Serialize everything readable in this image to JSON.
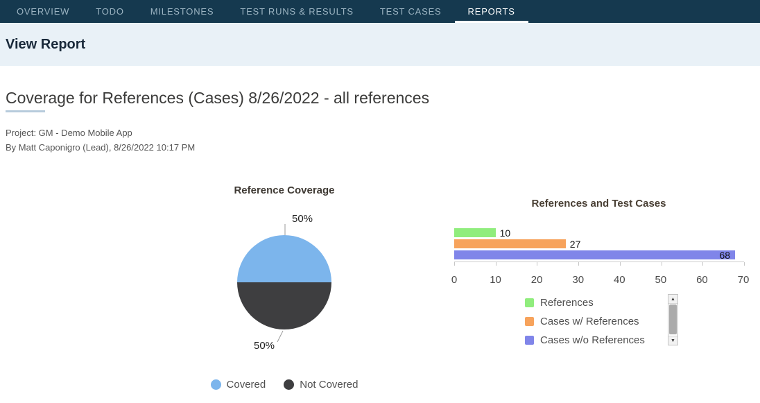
{
  "nav": {
    "items": [
      {
        "label": "OVERVIEW",
        "active": false
      },
      {
        "label": "TODO",
        "active": false
      },
      {
        "label": "MILESTONES",
        "active": false
      },
      {
        "label": "TEST RUNS & RESULTS",
        "active": false
      },
      {
        "label": "TEST CASES",
        "active": false
      },
      {
        "label": "REPORTS",
        "active": true
      }
    ]
  },
  "header": {
    "title": "View Report"
  },
  "report": {
    "title": "Coverage for References (Cases) 8/26/2022 - all references",
    "project_line": "Project: GM - Demo Mobile App",
    "byline": "By Matt Caponigro (Lead), 8/26/2022 10:17 PM"
  },
  "scrollbar": {
    "up_icon": "▲",
    "down_icon": "▼"
  },
  "chart_data": [
    {
      "type": "pie",
      "title": "Reference Coverage",
      "slices": [
        {
          "label": "Covered",
          "value": 50,
          "data_label": "50%",
          "color": "#7cb5ec"
        },
        {
          "label": "Not Covered",
          "value": 50,
          "data_label": "50%",
          "color": "#3e3e40"
        }
      ],
      "legend_position": "bottom"
    },
    {
      "type": "bar",
      "title": "References and Test Cases",
      "series": [
        {
          "name": "References",
          "value": 10,
          "color": "#90ed7d"
        },
        {
          "name": "Cases w/ References",
          "value": 27,
          "color": "#f7a35c"
        },
        {
          "name": "Cases w/o References",
          "value": 68,
          "color": "#8085e9"
        }
      ],
      "xlim": [
        0,
        70
      ],
      "x_ticks": [
        0,
        10,
        20,
        30,
        40,
        50,
        60,
        70
      ],
      "legend_position": "bottom-left"
    }
  ]
}
